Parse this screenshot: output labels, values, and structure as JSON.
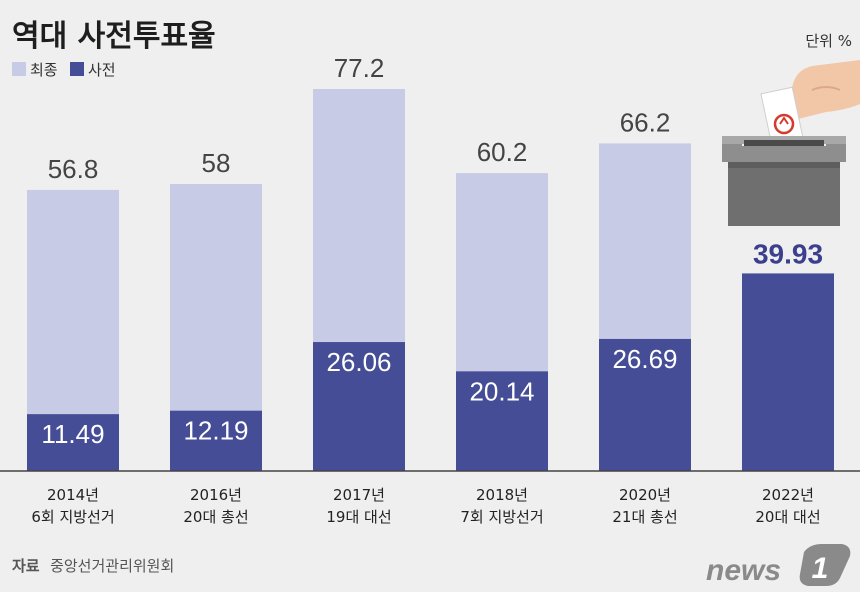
{
  "title": "역대 사전투표율",
  "unit": "단위 %",
  "legend": {
    "total": "최종",
    "early": "사전"
  },
  "source": {
    "label": "자료",
    "text": "중앙선거관리위원회"
  },
  "logo": {
    "text": "news",
    "mark": "1"
  },
  "colors": {
    "total": "#c8cbe6",
    "early": "#464d97",
    "early_highlight": "#3c3f8e",
    "background": "#efefef"
  },
  "chart_data": {
    "type": "bar",
    "stacked": "overlay",
    "categories": [
      [
        "2014년",
        "6회 지방선거"
      ],
      [
        "2016년",
        "20대 총선"
      ],
      [
        "2017년",
        "19대 대선"
      ],
      [
        "2018년",
        "7회 지방선거"
      ],
      [
        "2020년",
        "21대 총선"
      ],
      [
        "2022년",
        "20대 대선"
      ]
    ],
    "series": [
      {
        "name": "최종",
        "values": [
          56.8,
          58,
          77.2,
          60.2,
          66.2,
          null
        ],
        "labels": [
          "56.8",
          "58",
          "77.2",
          "60.2",
          "66.2",
          ""
        ]
      },
      {
        "name": "사전",
        "values": [
          11.49,
          12.19,
          26.06,
          20.14,
          26.69,
          39.93
        ],
        "labels": [
          "11.49",
          "12.19",
          "26.06",
          "20.14",
          "26.69",
          "39.93"
        ]
      }
    ],
    "ylim": [
      0,
      77.2
    ],
    "grid": false,
    "legend_position": "top-left"
  }
}
